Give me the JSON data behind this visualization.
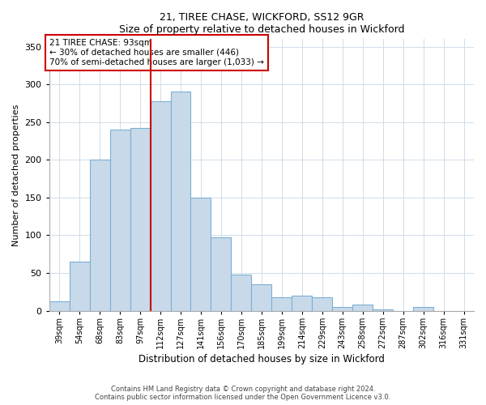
{
  "title": "21, TIREE CHASE, WICKFORD, SS12 9GR",
  "subtitle": "Size of property relative to detached houses in Wickford",
  "xlabel": "Distribution of detached houses by size in Wickford",
  "ylabel": "Number of detached properties",
  "categories": [
    "39sqm",
    "54sqm",
    "68sqm",
    "83sqm",
    "97sqm",
    "112sqm",
    "127sqm",
    "141sqm",
    "156sqm",
    "170sqm",
    "185sqm",
    "199sqm",
    "214sqm",
    "229sqm",
    "243sqm",
    "258sqm",
    "272sqm",
    "287sqm",
    "302sqm",
    "316sqm",
    "331sqm"
  ],
  "values": [
    13,
    65,
    200,
    240,
    242,
    278,
    291,
    150,
    97,
    48,
    35,
    18,
    20,
    18,
    5,
    8,
    2,
    0,
    5,
    0,
    0
  ],
  "bar_color": "#c8daea",
  "bar_edge_color": "#7dafd4",
  "vline_color": "#cc0000",
  "ylim": [
    0,
    360
  ],
  "yticks": [
    0,
    50,
    100,
    150,
    200,
    250,
    300,
    350
  ],
  "annotation_title": "21 TIREE CHASE: 93sqm",
  "annotation_line1": "← 30% of detached houses are smaller (446)",
  "annotation_line2": "70% of semi-detached houses are larger (1,033) →",
  "annotation_box_color": "#ffffff",
  "annotation_box_edge": "#cc0000",
  "footer_line1": "Contains HM Land Registry data © Crown copyright and database right 2024.",
  "footer_line2": "Contains public sector information licensed under the Open Government Licence v3.0.",
  "title_fontsize": 9,
  "subtitle_fontsize": 9
}
